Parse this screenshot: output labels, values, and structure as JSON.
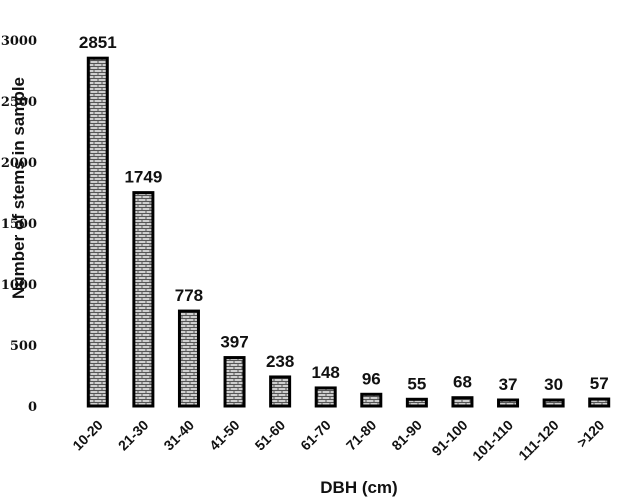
{
  "chart_data": {
    "type": "bar",
    "categories": [
      "10-20",
      "21-30",
      "31-40",
      "41-50",
      "51-60",
      "61-70",
      "71-80",
      "81-90",
      "91-100",
      "101-110",
      "111-120",
      ">120"
    ],
    "values": [
      2851,
      1749,
      778,
      397,
      238,
      148,
      96,
      55,
      68,
      37,
      30,
      57
    ],
    "data_labels": [
      "2851",
      "1749",
      "778",
      "397",
      "238",
      "148",
      "96",
      "55",
      "68",
      "37",
      "30",
      "57"
    ],
    "yticks": [
      0,
      500,
      1000,
      1500,
      2000,
      2500,
      3000
    ],
    "ytick_labels": [
      "0",
      "500",
      "1000",
      "1500",
      "2000",
      "2500",
      "3000"
    ],
    "ylim": [
      0,
      3000
    ],
    "xlabel": "DBH (cm)",
    "ylabel": "Number of stems in sample",
    "title": "",
    "grid": false,
    "legend": "none",
    "bar_pattern": "brick",
    "colors": {
      "bar_outline": "#000000",
      "pattern_fill": "#cfcfcf",
      "pattern_lines": "#555555"
    }
  }
}
